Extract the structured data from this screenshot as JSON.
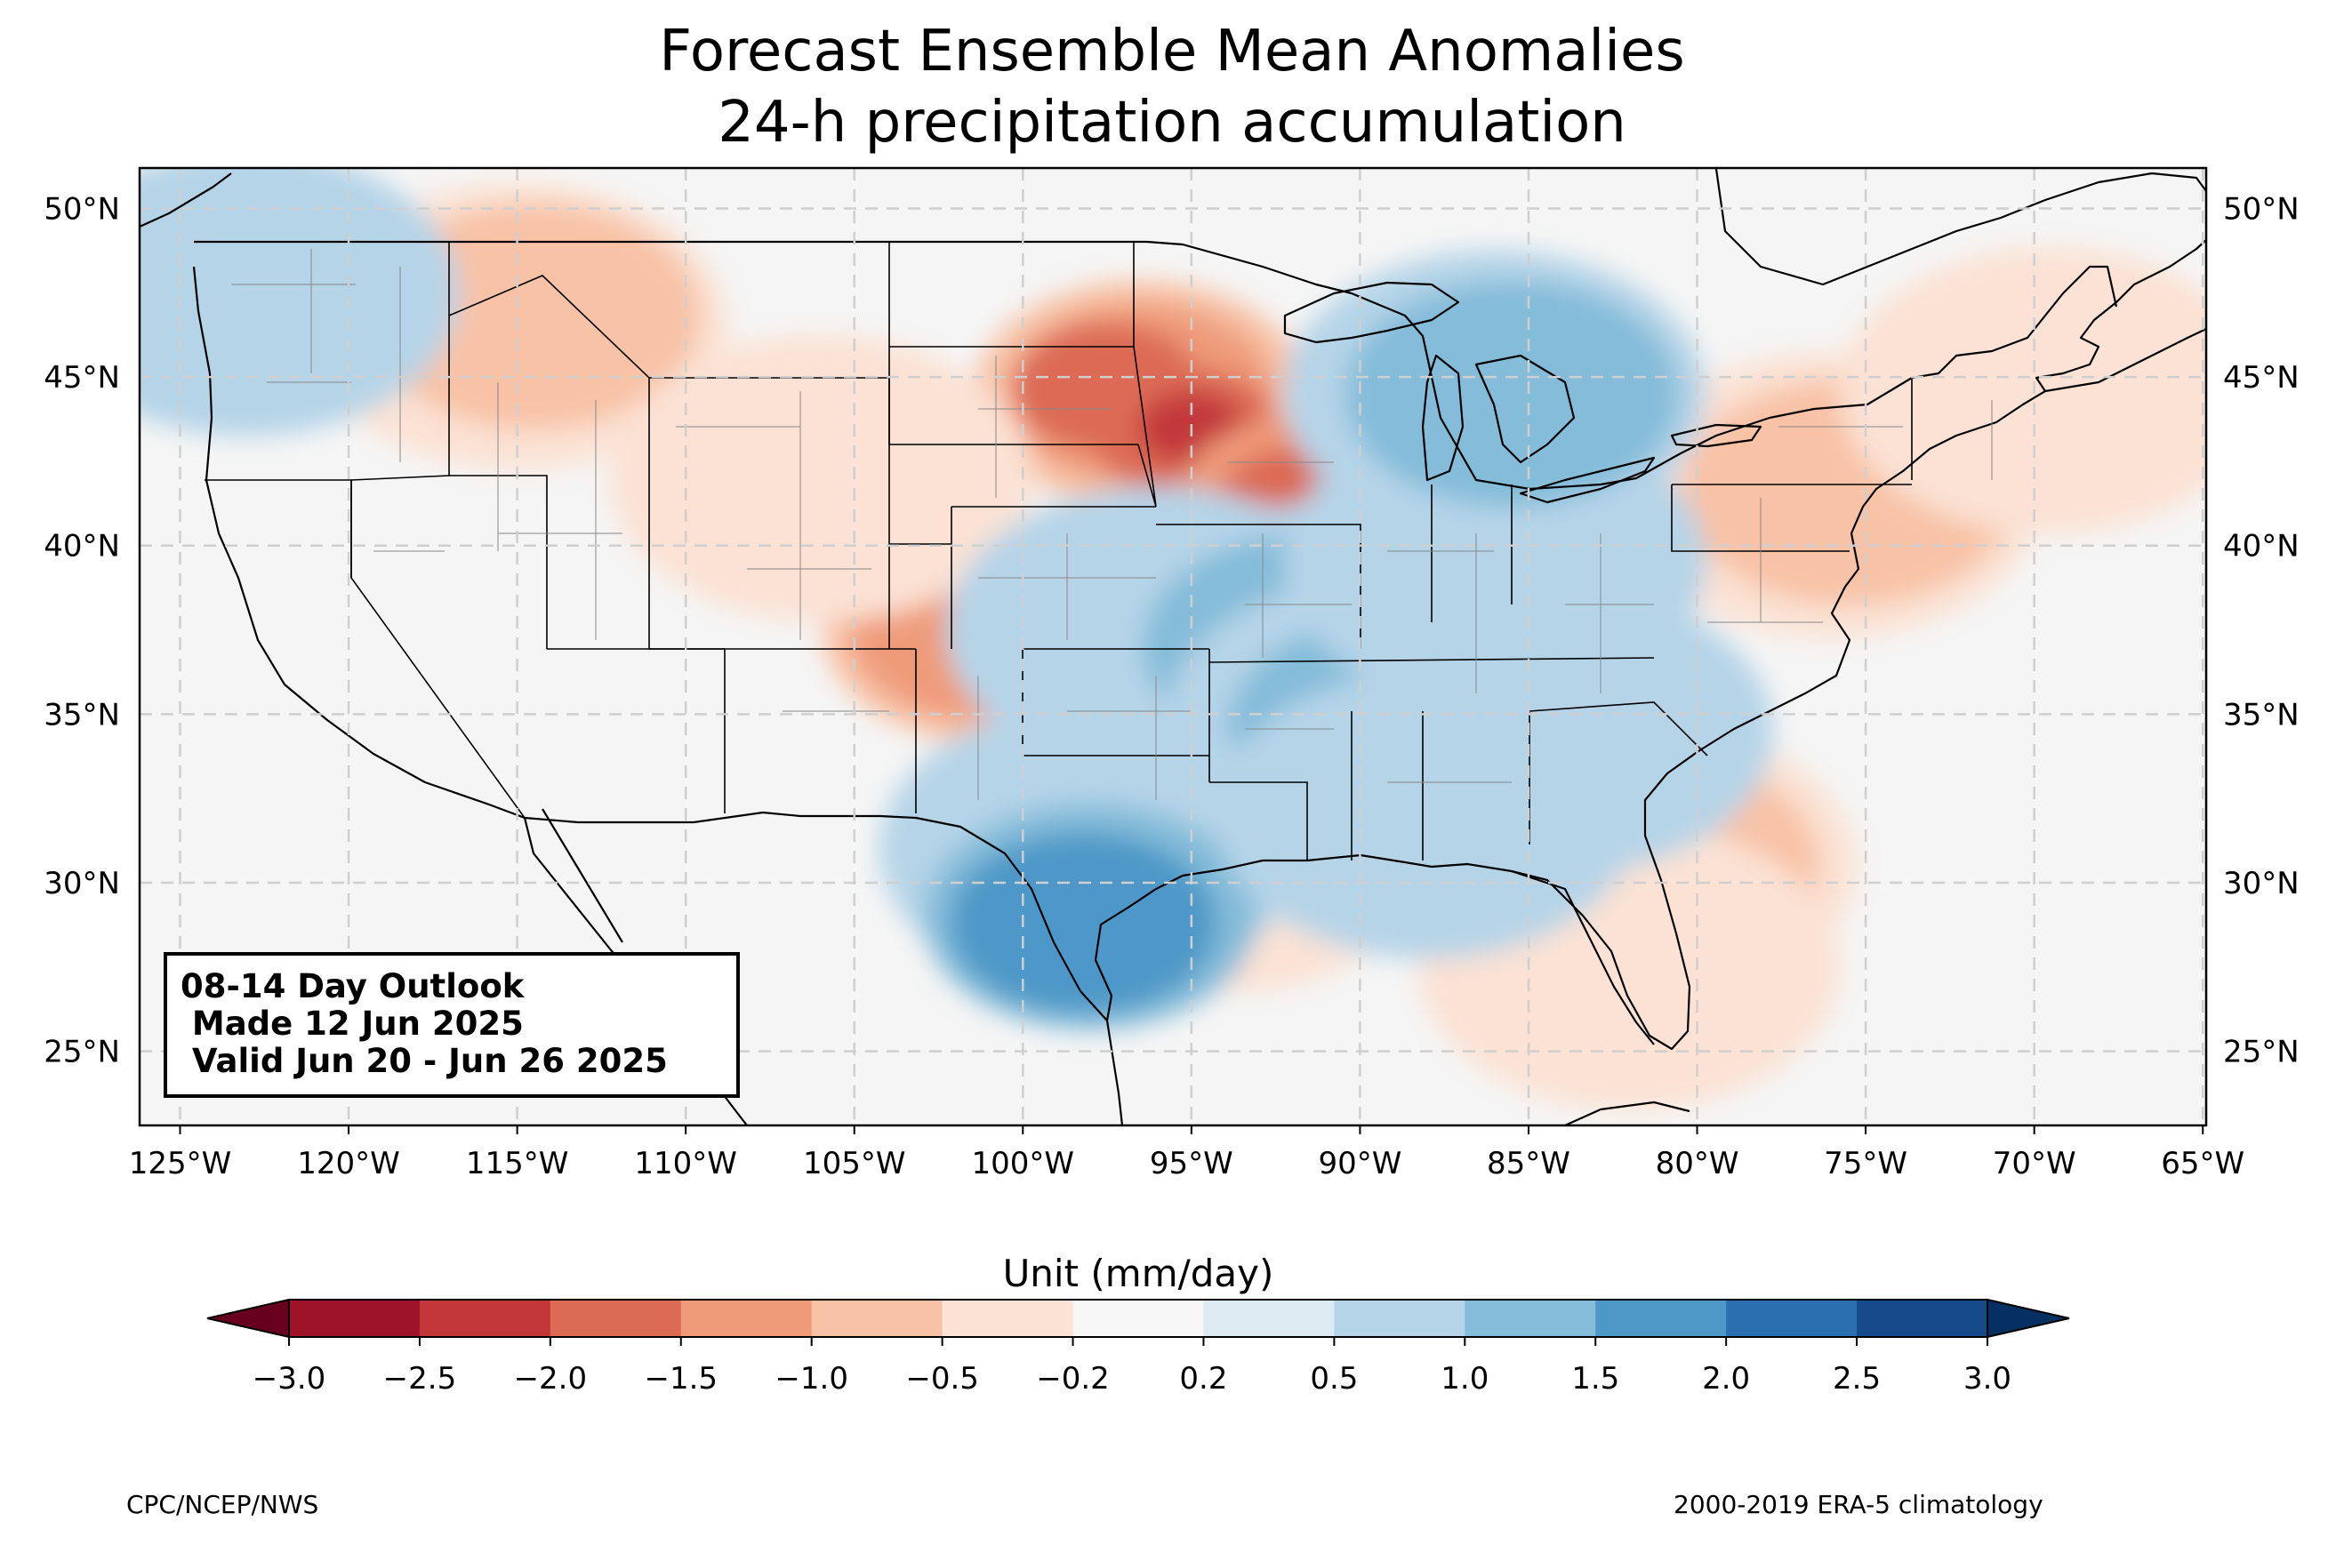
{
  "title": {
    "line1": "Forecast Ensemble Mean Anomalies",
    "line2": "24-h precipitation accumulation"
  },
  "outlook": {
    "line1": "08-14 Day Outlook",
    "line2": " Made 12 Jun 2025",
    "line3": " Valid Jun 20 - Jun 26 2025"
  },
  "colorbar": {
    "label": "Unit (mm/day)",
    "ticks": [
      "−3.0",
      "−2.5",
      "−2.0",
      "−1.5",
      "−1.0",
      "−0.5",
      "−0.2",
      "0.2",
      "0.5",
      "1.0",
      "1.5",
      "2.0",
      "2.5",
      "3.0"
    ],
    "bins": [
      {
        "from": -3.0,
        "to": -2.5,
        "color": "#9e1328"
      },
      {
        "from": -2.5,
        "to": -2.0,
        "color": "#c3373a"
      },
      {
        "from": -2.0,
        "to": -1.5,
        "color": "#dc6b55"
      },
      {
        "from": -1.5,
        "to": -1.0,
        "color": "#ef9b7a"
      },
      {
        "from": -1.0,
        "to": -0.5,
        "color": "#f8c2a6"
      },
      {
        "from": -0.5,
        "to": -0.2,
        "color": "#fbe2d4"
      },
      {
        "from": -0.2,
        "to": 0.2,
        "color": "#f7f7f7"
      },
      {
        "from": 0.2,
        "to": 0.5,
        "color": "#dceaf2"
      },
      {
        "from": 0.5,
        "to": 1.0,
        "color": "#b5d4e8"
      },
      {
        "from": 1.0,
        "to": 1.5,
        "color": "#84bcd9"
      },
      {
        "from": 1.5,
        "to": 2.0,
        "color": "#4e98c8"
      },
      {
        "from": 2.0,
        "to": 2.5,
        "color": "#2b6fb1"
      },
      {
        "from": 2.5,
        "to": 3.0,
        "color": "#174a8a"
      }
    ],
    "under_color": "#67001f",
    "over_color": "#053061"
  },
  "axes": {
    "lon_labels": [
      "125°W",
      "120°W",
      "115°W",
      "110°W",
      "105°W",
      "100°W",
      "95°W",
      "90°W",
      "85°W",
      "80°W",
      "75°W",
      "70°W",
      "65°W"
    ],
    "lon_values": [
      -125,
      -120,
      -115,
      -110,
      -105,
      -100,
      -95,
      -90,
      -85,
      -80,
      -75,
      -70,
      -65
    ],
    "lat_labels": [
      "50°N",
      "45°N",
      "40°N",
      "35°N",
      "30°N",
      "25°N"
    ],
    "lat_values": [
      50,
      45,
      40,
      35,
      30,
      25
    ],
    "lon_range": [
      -126.2,
      -64.9
    ],
    "lat_range": [
      22.8,
      51.2
    ],
    "grid": true
  },
  "anomaly_areas": [
    {
      "lon": -96.5,
      "lat": 44.5,
      "level": -1.0
    },
    {
      "lon": -96.5,
      "lat": 44.5,
      "level": -1.5
    },
    {
      "lon": -97.5,
      "lat": 44.7,
      "level": -2.0
    },
    {
      "lon": -95.2,
      "lat": 43.4,
      "level": -2.0
    },
    {
      "lon": -95.0,
      "lat": 43.5,
      "level": -2.5
    },
    {
      "lon": -91.5,
      "lat": 41.2,
      "level": -1.5
    },
    {
      "lon": -91.5,
      "lat": 41.1,
      "level": -2.0
    },
    {
      "lon": -101.0,
      "lat": 37.5,
      "level": -1.0
    },
    {
      "lon": -101.2,
      "lat": 37.5,
      "level": -1.5
    },
    {
      "lon": -115.0,
      "lat": 46.5,
      "level": -0.5
    },
    {
      "lon": -114.5,
      "lat": 46.8,
      "level": -1.0
    },
    {
      "lon": -94.0,
      "lat": 31.0,
      "level": -0.5
    },
    {
      "lon": -81.5,
      "lat": 30.5,
      "level": -0.5
    },
    {
      "lon": -81.3,
      "lat": 30.5,
      "level": -1.0
    },
    {
      "lon": -82.0,
      "lat": 27.5,
      "level": -0.5
    },
    {
      "lon": -76.0,
      "lat": 41.5,
      "level": -0.5
    },
    {
      "lon": -75.5,
      "lat": 41.6,
      "level": -1.0
    },
    {
      "lon": -69.5,
      "lat": 44.6,
      "level": -0.5
    },
    {
      "lon": -106.0,
      "lat": 42.0,
      "level": -0.5
    },
    {
      "lon": -96.0,
      "lat": 37.5,
      "level": 0.5
    },
    {
      "lon": -91.0,
      "lat": 37.0,
      "level": 0.5
    },
    {
      "lon": -91.5,
      "lat": 37.0,
      "level": 1.0
    },
    {
      "lon": -89.5,
      "lat": 34.8,
      "level": 0.5
    },
    {
      "lon": -89.0,
      "lat": 34.5,
      "level": 1.0
    },
    {
      "lon": -86.0,
      "lat": 39.5,
      "level": 0.5
    },
    {
      "lon": -86.0,
      "lat": 44.5,
      "level": 0.5
    },
    {
      "lon": -85.5,
      "lat": 44.5,
      "level": 1.0
    },
    {
      "lon": -98.0,
      "lat": 31.0,
      "level": 0.5
    },
    {
      "lon": -98.0,
      "lat": 29.0,
      "level": 1.0
    },
    {
      "lon": -98.2,
      "lat": 28.8,
      "level": 1.5
    },
    {
      "lon": -88.0,
      "lat": 32.0,
      "level": 0.5
    },
    {
      "lon": -84.0,
      "lat": 34.5,
      "level": 0.5
    },
    {
      "lon": -123.0,
      "lat": 47.5,
      "level": 0.5
    }
  ],
  "footer": {
    "left": "CPC/NCEP/NWS",
    "right": "2000-2019 ERA-5 climatology"
  }
}
